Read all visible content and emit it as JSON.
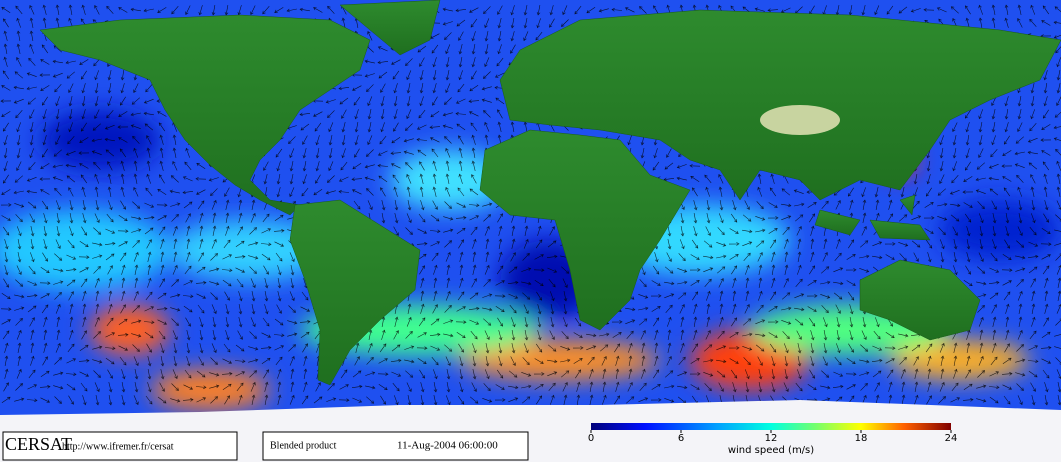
{
  "logo": "CERSAT",
  "url": "http://www.ifremer.fr/cersat",
  "product": "Blended product",
  "timestamp": "11-Aug-2004 06:00:00",
  "colorbar": {
    "label": "wind speed (m/s)",
    "range": [
      0,
      24
    ],
    "ticks": [
      0,
      6,
      12,
      18,
      24
    ]
  }
}
